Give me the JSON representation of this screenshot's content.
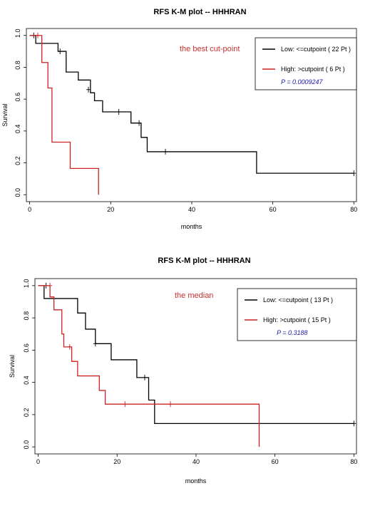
{
  "chart_data": [
    {
      "type": "line",
      "title": "RFS K-M plot -- HHHRAN",
      "xlabel": "months",
      "ylabel": "Survival",
      "xlim": [
        0,
        80
      ],
      "ylim": [
        0,
        1
      ],
      "xticks": [
        "0",
        "20",
        "40",
        "60",
        "80"
      ],
      "yticks": [
        "0.0",
        "0.2",
        "0.4",
        "0.6",
        "0.8",
        "1.0"
      ],
      "annotation": "the best cut-point",
      "p_value": "P = 0.0009247",
      "legend_position": "top-right",
      "series": [
        {
          "name": "Low: <=cutpoint ( 22 Pt )",
          "color": "#000000",
          "steps": [
            [
              0,
              1.0
            ],
            [
              1.5,
              0.95
            ],
            [
              7,
              0.9
            ],
            [
              9,
              0.77
            ],
            [
              12,
              0.72
            ],
            [
              15,
              0.64
            ],
            [
              16,
              0.59
            ],
            [
              18,
              0.52
            ],
            [
              25,
              0.45
            ],
            [
              27.5,
              0.36
            ],
            [
              29,
              0.27
            ],
            [
              56,
              0.135
            ],
            [
              80,
              0.135
            ]
          ],
          "censors": [
            [
              1,
              1.0
            ],
            [
              7.5,
              0.9
            ],
            [
              14.5,
              0.66
            ],
            [
              22,
              0.52
            ],
            [
              27,
              0.45
            ],
            [
              33.5,
              0.27
            ],
            [
              80,
              0.135
            ]
          ]
        },
        {
          "name": "High: >cutpoint ( 6 Pt )",
          "color": "#cc2222",
          "steps": [
            [
              0,
              1.0
            ],
            [
              3,
              0.83
            ],
            [
              4.5,
              0.67
            ],
            [
              5.5,
              0.33
            ],
            [
              10,
              0.165
            ],
            [
              17,
              0.0
            ]
          ],
          "censors": [
            [
              2,
              1.0
            ]
          ]
        }
      ]
    },
    {
      "type": "line",
      "title": "RFS K-M plot -- HHHRAN",
      "xlabel": "months",
      "ylabel": "Survival",
      "xlim": [
        0,
        80
      ],
      "ylim": [
        0,
        1
      ],
      "xticks": [
        "0",
        "20",
        "40",
        "60",
        "80"
      ],
      "yticks": [
        "0.0",
        "0.2",
        "0.4",
        "0.6",
        "0.8",
        "1.0"
      ],
      "annotation": "the median",
      "p_value": "P = 0.3188",
      "legend_position": "top-right",
      "series": [
        {
          "name": "Low: <=cutpoint ( 13 Pt )",
          "color": "#000000",
          "steps": [
            [
              0,
              1.0
            ],
            [
              1.5,
              0.92
            ],
            [
              10,
              0.83
            ],
            [
              12,
              0.73
            ],
            [
              14.5,
              0.64
            ],
            [
              18.5,
              0.54
            ],
            [
              25,
              0.43
            ],
            [
              28,
              0.29
            ],
            [
              29.5,
              0.145
            ],
            [
              80,
              0.145
            ]
          ],
          "censors": [
            [
              2,
              1.0
            ],
            [
              14.5,
              0.64
            ],
            [
              27,
              0.43
            ],
            [
              80,
              0.145
            ]
          ]
        },
        {
          "name": "High: >cutpoint ( 15 Pt )",
          "color": "#cc2222",
          "steps": [
            [
              0,
              1.0
            ],
            [
              3,
              0.93
            ],
            [
              4,
              0.85
            ],
            [
              6,
              0.7
            ],
            [
              6.5,
              0.62
            ],
            [
              8.5,
              0.53
            ],
            [
              10,
              0.44
            ],
            [
              15.5,
              0.35
            ],
            [
              17,
              0.265
            ],
            [
              56,
              0.0
            ]
          ],
          "censors": [
            [
              3,
              1.0
            ],
            [
              8,
              0.62
            ],
            [
              22,
              0.265
            ],
            [
              33.5,
              0.265
            ]
          ]
        }
      ]
    }
  ]
}
